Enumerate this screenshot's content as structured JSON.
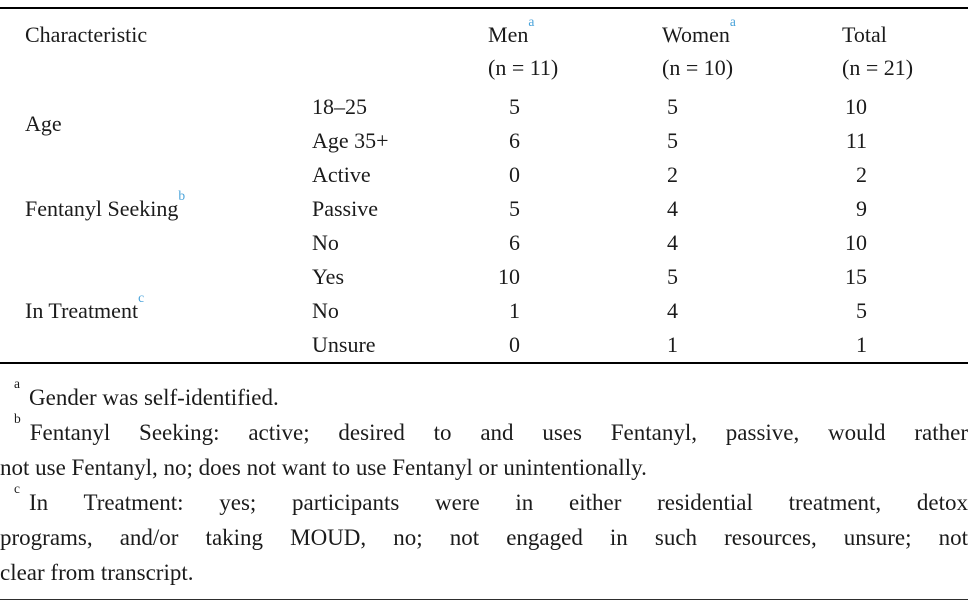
{
  "table": {
    "header": {
      "characteristic": "Characteristic",
      "cols": [
        {
          "label": "Men",
          "sup": "a",
          "sub": "(n = 11)"
        },
        {
          "label": "Women",
          "sup": "a",
          "sub": "(n = 10)"
        },
        {
          "label": "Total",
          "sup": "",
          "sub": "(n = 21)"
        }
      ]
    },
    "groups": [
      {
        "label": "Age",
        "sup": "",
        "rows": [
          {
            "category": "18–25",
            "men": "5",
            "women": "5",
            "total": "10"
          },
          {
            "category": "Age 35+",
            "men": "6",
            "women": "5",
            "total": "11"
          }
        ]
      },
      {
        "label": "Fentanyl Seeking",
        "sup": "b",
        "rows": [
          {
            "category": "Active",
            "men": "0",
            "women": "2",
            "total": "2"
          },
          {
            "category": "Passive",
            "men": "5",
            "women": "4",
            "total": "9"
          },
          {
            "category": "No",
            "men": "6",
            "women": "4",
            "total": "10"
          }
        ]
      },
      {
        "label": "In Treatment",
        "sup": "c",
        "rows": [
          {
            "category": "Yes",
            "men": "10",
            "women": "5",
            "total": "15"
          },
          {
            "category": "No",
            "men": "1",
            "women": "4",
            "total": "5"
          },
          {
            "category": "Unsure",
            "men": "0",
            "women": "1",
            "total": "1"
          }
        ]
      }
    ]
  },
  "footnotes": [
    {
      "marker": "a",
      "lines": [
        "Gender was self-identified."
      ]
    },
    {
      "marker": "b",
      "lines": [
        "Fentanyl Seeking: active; desired to and uses Fentanyl, passive, would rather",
        "not use Fentanyl, no; does not want to use Fentanyl or unintentionally."
      ]
    },
    {
      "marker": "c",
      "lines": [
        "In Treatment: yes; participants were in either residential treatment, detox",
        "programs, and/or taking MOUD, no; not engaged in such resources, unsure; not",
        "clear from transcript."
      ]
    }
  ],
  "colors": {
    "superscript_blue": "#4aa3da",
    "text": "#1b1b1b",
    "rule": "#000000"
  },
  "chart_data": {
    "type": "table",
    "columns": [
      "Characteristic",
      "",
      "Men (n = 11)",
      "Women (n = 10)",
      "Total (n = 21)"
    ],
    "rows": [
      [
        "Age",
        "18–25",
        5,
        5,
        10
      ],
      [
        "Age",
        "Age 35+",
        6,
        5,
        11
      ],
      [
        "Fentanyl Seeking",
        "Active",
        0,
        2,
        2
      ],
      [
        "Fentanyl Seeking",
        "Passive",
        5,
        4,
        9
      ],
      [
        "Fentanyl Seeking",
        "No",
        6,
        4,
        10
      ],
      [
        "In Treatment",
        "Yes",
        10,
        5,
        15
      ],
      [
        "In Treatment",
        "No",
        1,
        4,
        5
      ],
      [
        "In Treatment",
        "Unsure",
        0,
        1,
        1
      ]
    ]
  }
}
